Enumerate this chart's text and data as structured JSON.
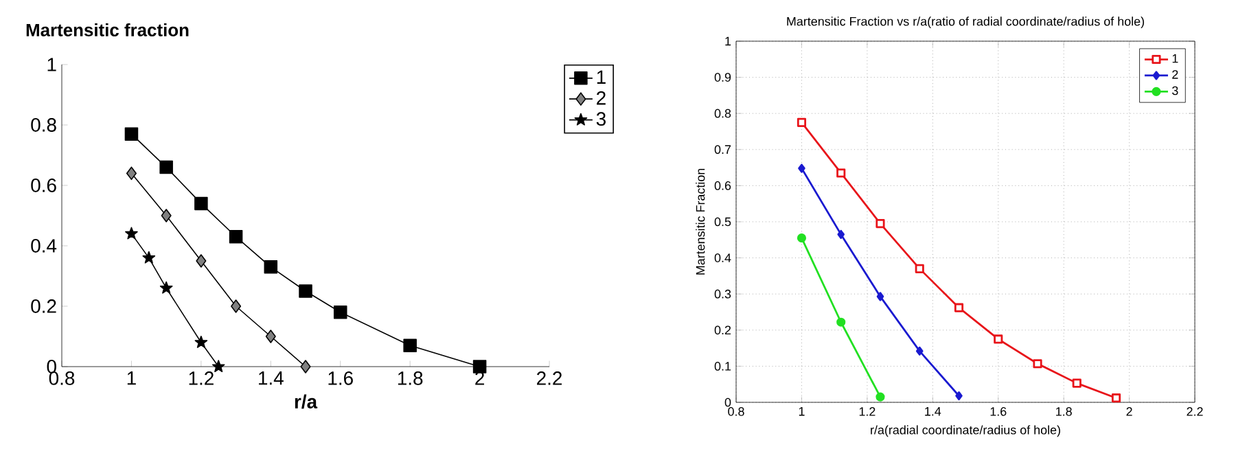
{
  "chart_data": [
    {
      "type": "line",
      "title": "Martensitic fraction",
      "xlabel": "r/a",
      "xlim": [
        0.8,
        2.2
      ],
      "xticks": [
        0.8,
        1,
        1.2,
        1.4,
        1.6,
        1.8,
        2,
        2.2
      ],
      "ylim": [
        0,
        1
      ],
      "yticks": [
        0,
        0.2,
        0.4,
        0.6,
        0.8,
        1
      ],
      "legend": "right",
      "grid": false,
      "series": [
        {
          "name": "1",
          "color": "#000000",
          "marker": "square",
          "x": [
            1,
            1.1,
            1.2,
            1.3,
            1.4,
            1.5,
            1.6,
            1.8,
            2
          ],
          "values": [
            0.77,
            0.66,
            0.54,
            0.43,
            0.33,
            0.25,
            0.18,
            0.07,
            0.0
          ]
        },
        {
          "name": "2",
          "color": "#000000",
          "marker": "diamond",
          "x": [
            1,
            1.1,
            1.2,
            1.3,
            1.4,
            1.5
          ],
          "values": [
            0.64,
            0.5,
            0.35,
            0.2,
            0.1,
            0.0
          ]
        },
        {
          "name": "3",
          "color": "#000000",
          "marker": "star",
          "x": [
            1,
            1.05,
            1.1,
            1.2,
            1.25
          ],
          "values": [
            0.44,
            0.36,
            0.26,
            0.08,
            0.0
          ]
        }
      ]
    },
    {
      "type": "line",
      "title": "Martensitic Fraction vs r/a(ratio of radial coordinate/radius of hole)",
      "xlabel": "r/a(radial coordinate/radius of hole)",
      "ylabel": "Martensitic Fraction",
      "xlim": [
        0.8,
        2.2
      ],
      "xticks": [
        0.8,
        1,
        1.2,
        1.4,
        1.6,
        1.8,
        2,
        2.2
      ],
      "ylim": [
        0,
        1
      ],
      "yticks": [
        0,
        0.1,
        0.2,
        0.3,
        0.4,
        0.5,
        0.6,
        0.7,
        0.8,
        0.9,
        1
      ],
      "legend": "top right",
      "grid": true,
      "series": [
        {
          "name": "1",
          "color": "#e8141a",
          "marker": "square",
          "x": [
            1,
            1.12,
            1.24,
            1.36,
            1.48,
            1.6,
            1.72,
            1.84,
            1.96
          ],
          "values": [
            0.775,
            0.635,
            0.495,
            0.37,
            0.262,
            0.175,
            0.107,
            0.053,
            0.012
          ]
        },
        {
          "name": "2",
          "color": "#1a1ad0",
          "marker": "diamond",
          "x": [
            1,
            1.12,
            1.24,
            1.36,
            1.48
          ],
          "values": [
            0.648,
            0.465,
            0.293,
            0.142,
            0.018
          ]
        },
        {
          "name": "3",
          "color": "#22e022",
          "marker": "circle",
          "x": [
            1,
            1.12,
            1.24
          ],
          "values": [
            0.455,
            0.222,
            0.015
          ]
        }
      ]
    }
  ]
}
